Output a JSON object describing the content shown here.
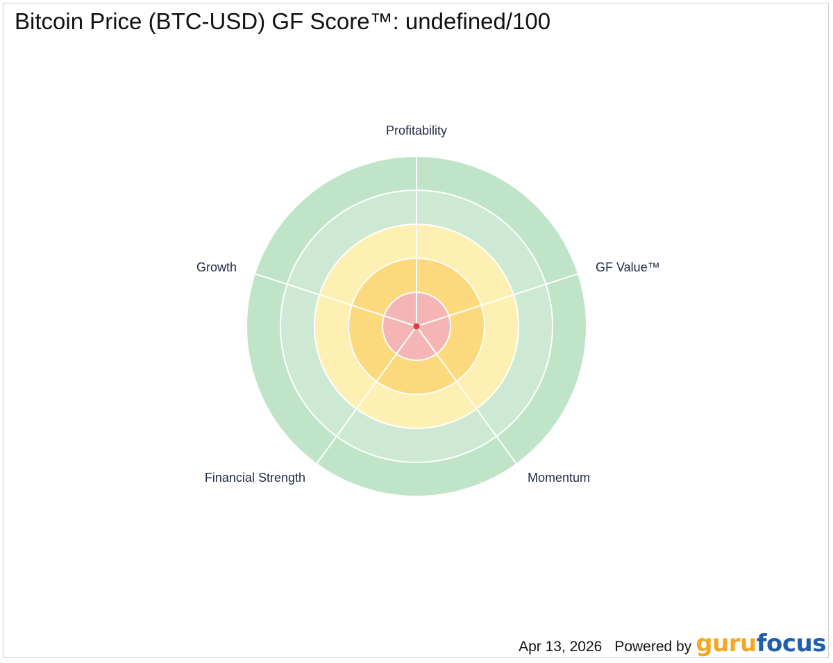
{
  "title": "Bitcoin Price (BTC-USD) GF Score™: undefined/100",
  "footer": {
    "date": "Apr 13, 2026",
    "powered_by": "Powered by",
    "brand_part1": "guru",
    "brand_part2": "focus",
    "brand_color1": "#f5a623",
    "brand_color2": "#1f5fae"
  },
  "chart_data": {
    "type": "radar",
    "axes": [
      "Profitability",
      "GF Value™",
      "Momentum",
      "Financial Strength",
      "Growth"
    ],
    "values": [
      null,
      null,
      null,
      null,
      null
    ],
    "rlim": [
      0,
      10
    ],
    "ring_colors": [
      "#f6b5b5",
      "#fdd97e",
      "#fdf0b2",
      "#cde9d3",
      "#bfe4c7"
    ],
    "point_color": "#e53935",
    "grid": true
  }
}
